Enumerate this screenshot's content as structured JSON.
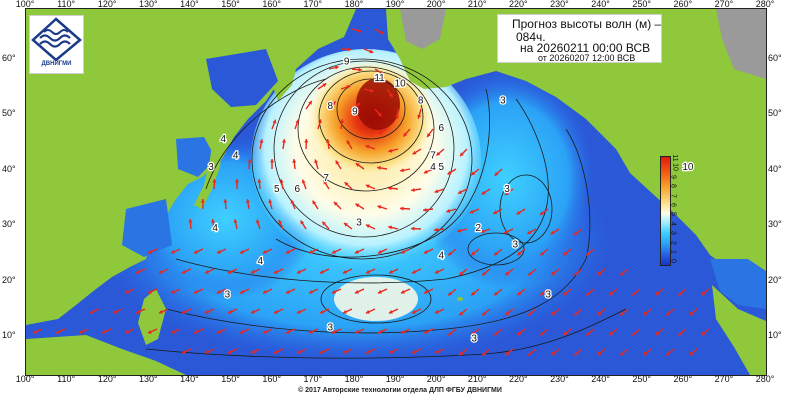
{
  "title": {
    "line1": "Прогноз высоты волн (м) –",
    "line2": "084ч.",
    "line3": "на 20260211 00:00 ВСВ",
    "line4": "от 20260207 12:00 ВСВ"
  },
  "logo": {
    "text": "ДВНИГМИ"
  },
  "copyright": "© 2017 Авторские технологии отдела ДЛП ФГБУ ДВНИГМИ",
  "lon_ticks": [
    "100°",
    "110°",
    "120°",
    "130°",
    "140°",
    "150°",
    "160°",
    "170°",
    "180°",
    "190°",
    "200°",
    "210°",
    "220°",
    "230°",
    "240°",
    "250°",
    "260°",
    "270°",
    "280°"
  ],
  "lat_ticks": [
    "60°",
    "50°",
    "40°",
    "30°",
    "20°",
    "10°"
  ],
  "colorbar": {
    "labels": [
      "11",
      "10",
      "9",
      "8",
      "7",
      "6",
      "5",
      "4",
      "3",
      "2",
      "1",
      "0"
    ],
    "colors": [
      "#e01c0c",
      "#f25a10",
      "#f7a22a",
      "#fbe28a",
      "#fffde8",
      "#a9f0ff",
      "#3fd0ff",
      "#2ba2f6",
      "#2962e6",
      "#1634c8"
    ]
  },
  "colors": {
    "land": "#8fc83a",
    "ocean_low": "#2f5fd8",
    "ocean_mid": "#33b8f4",
    "ocean_high": "#fbe28a",
    "peak": "#e01c0c",
    "arrow": "#e8281e",
    "ice": "#9a9a9a"
  },
  "contour_labels": [
    {
      "text": "11",
      "lon": 186,
      "lat": 56
    },
    {
      "text": "10",
      "lon": 191,
      "lat": 55
    },
    {
      "text": "9",
      "lon": 178,
      "lat": 59
    },
    {
      "text": "9",
      "lon": 180,
      "lat": 50
    },
    {
      "text": "8",
      "lon": 174,
      "lat": 51
    },
    {
      "text": "8",
      "lon": 196,
      "lat": 52
    },
    {
      "text": "7",
      "lon": 173,
      "lat": 38
    },
    {
      "text": "7",
      "lon": 199,
      "lat": 42
    },
    {
      "text": "6",
      "lon": 166,
      "lat": 36
    },
    {
      "text": "6",
      "lon": 201,
      "lat": 47
    },
    {
      "text": "5",
      "lon": 161,
      "lat": 36
    },
    {
      "text": "5",
      "lon": 201,
      "lat": 40
    },
    {
      "text": "4",
      "lon": 151,
      "lat": 42
    },
    {
      "text": "4",
      "lon": 199,
      "lat": 40
    },
    {
      "text": "4",
      "lon": 157,
      "lat": 23
    },
    {
      "text": "4",
      "lon": 201,
      "lat": 24
    },
    {
      "text": "4",
      "lon": 146,
      "lat": 29
    },
    {
      "text": "4",
      "lon": 148,
      "lat": 45
    },
    {
      "text": "3",
      "lon": 145,
      "lat": 40
    },
    {
      "text": "3",
      "lon": 181,
      "lat": 30
    },
    {
      "text": "3",
      "lon": 217,
      "lat": 36
    },
    {
      "text": "3",
      "lon": 219,
      "lat": 26
    },
    {
      "text": "3",
      "lon": 216,
      "lat": 52
    },
    {
      "text": "3",
      "lon": 174,
      "lat": 11
    },
    {
      "text": "3",
      "lon": 209,
      "lat": 9
    },
    {
      "text": "3",
      "lon": 149,
      "lat": 17
    },
    {
      "text": "3",
      "lon": 227,
      "lat": 17
    },
    {
      "text": "2",
      "lon": 210,
      "lat": 29
    },
    {
      "text": "10",
      "lon": 261,
      "lat": 40
    }
  ]
}
